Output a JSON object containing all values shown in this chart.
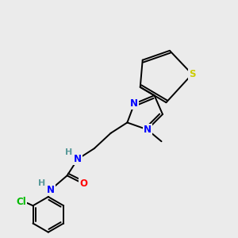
{
  "background_color": "#ebebeb",
  "bond_color": "#000000",
  "atom_colors": {
    "N": "#0000ff",
    "O": "#ff0000",
    "S": "#cccc00",
    "Cl": "#00bb00",
    "H": "#5a9a9a",
    "C": "#000000"
  },
  "figsize": [
    3.0,
    3.0
  ],
  "dpi": 100,
  "lw": 1.4,
  "fs": 8.5
}
